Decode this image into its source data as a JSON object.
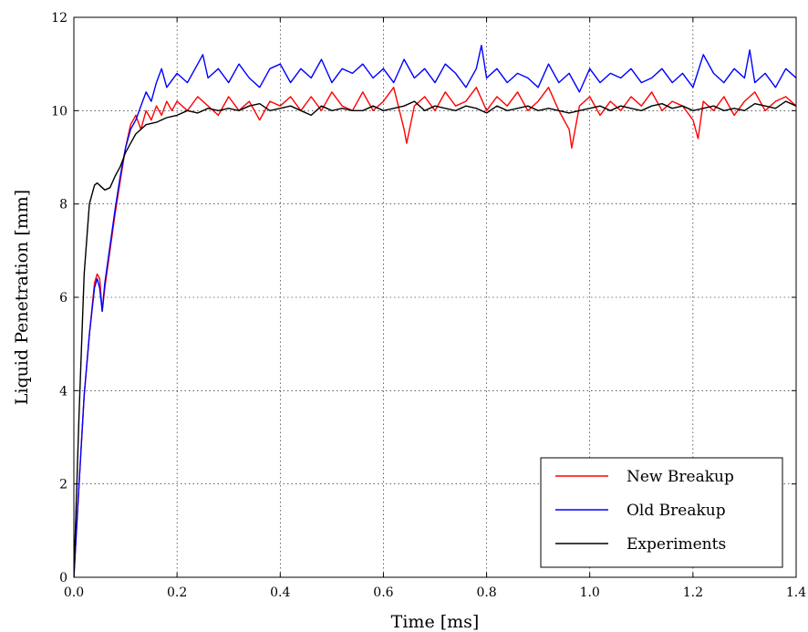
{
  "chart_data": {
    "type": "line",
    "title": "",
    "xlabel": "Time [ms]",
    "ylabel": "Liquid Penetration [mm]",
    "xlim": [
      0.0,
      1.4
    ],
    "ylim": [
      0,
      12
    ],
    "xticks": [
      "0.0",
      "0.2",
      "0.4",
      "0.6",
      "0.8",
      "1.0",
      "1.2",
      "1.4"
    ],
    "yticks": [
      "0",
      "2",
      "4",
      "6",
      "8",
      "10",
      "12"
    ],
    "grid": true,
    "legend_position": "lower right",
    "series": [
      {
        "name": "New Breakup",
        "color": "#ff0000",
        "x": [
          0.0,
          0.01,
          0.02,
          0.03,
          0.04,
          0.045,
          0.05,
          0.055,
          0.06,
          0.07,
          0.08,
          0.09,
          0.1,
          0.11,
          0.12,
          0.13,
          0.14,
          0.15,
          0.16,
          0.17,
          0.18,
          0.19,
          0.2,
          0.22,
          0.24,
          0.26,
          0.28,
          0.3,
          0.32,
          0.34,
          0.36,
          0.38,
          0.4,
          0.42,
          0.44,
          0.46,
          0.48,
          0.5,
          0.52,
          0.54,
          0.56,
          0.58,
          0.6,
          0.62,
          0.64,
          0.645,
          0.66,
          0.68,
          0.7,
          0.72,
          0.74,
          0.76,
          0.78,
          0.8,
          0.82,
          0.84,
          0.86,
          0.88,
          0.9,
          0.92,
          0.94,
          0.96,
          0.965,
          0.98,
          1.0,
          1.02,
          1.04,
          1.06,
          1.08,
          1.1,
          1.12,
          1.14,
          1.16,
          1.18,
          1.2,
          1.21,
          1.22,
          1.24,
          1.26,
          1.28,
          1.3,
          1.32,
          1.34,
          1.36,
          1.38,
          1.4
        ],
        "y": [
          0.0,
          2.0,
          3.9,
          5.2,
          6.3,
          6.5,
          6.4,
          5.7,
          6.2,
          7.0,
          7.8,
          8.5,
          9.2,
          9.7,
          9.9,
          9.6,
          10.0,
          9.8,
          10.1,
          9.9,
          10.2,
          10.0,
          10.2,
          10.0,
          10.3,
          10.1,
          9.9,
          10.3,
          10.0,
          10.2,
          9.8,
          10.2,
          10.1,
          10.3,
          10.0,
          10.3,
          10.0,
          10.4,
          10.1,
          10.0,
          10.4,
          10.0,
          10.2,
          10.5,
          9.6,
          9.3,
          10.1,
          10.3,
          10.0,
          10.4,
          10.1,
          10.2,
          10.5,
          10.0,
          10.3,
          10.1,
          10.4,
          10.0,
          10.2,
          10.5,
          10.0,
          9.6,
          9.2,
          10.1,
          10.3,
          9.9,
          10.2,
          10.0,
          10.3,
          10.1,
          10.4,
          10.0,
          10.2,
          10.1,
          9.8,
          9.4,
          10.2,
          10.0,
          10.3,
          9.9,
          10.2,
          10.4,
          10.0,
          10.2,
          10.3,
          10.1
        ]
      },
      {
        "name": "Old Breakup",
        "color": "#0000ff",
        "x": [
          0.0,
          0.01,
          0.02,
          0.03,
          0.04,
          0.045,
          0.05,
          0.055,
          0.06,
          0.07,
          0.08,
          0.09,
          0.1,
          0.11,
          0.12,
          0.13,
          0.14,
          0.15,
          0.16,
          0.17,
          0.18,
          0.2,
          0.22,
          0.24,
          0.25,
          0.26,
          0.28,
          0.3,
          0.32,
          0.34,
          0.36,
          0.38,
          0.4,
          0.42,
          0.44,
          0.46,
          0.48,
          0.5,
          0.52,
          0.54,
          0.56,
          0.58,
          0.6,
          0.62,
          0.64,
          0.66,
          0.68,
          0.7,
          0.72,
          0.74,
          0.76,
          0.78,
          0.79,
          0.8,
          0.82,
          0.84,
          0.86,
          0.88,
          0.9,
          0.92,
          0.94,
          0.96,
          0.98,
          1.0,
          1.02,
          1.04,
          1.06,
          1.08,
          1.1,
          1.12,
          1.14,
          1.16,
          1.18,
          1.2,
          1.22,
          1.24,
          1.26,
          1.28,
          1.3,
          1.31,
          1.32,
          1.34,
          1.36,
          1.38,
          1.4
        ],
        "y": [
          0.0,
          2.0,
          3.9,
          5.2,
          6.2,
          6.4,
          6.2,
          5.7,
          6.3,
          7.1,
          7.9,
          8.6,
          9.2,
          9.6,
          9.8,
          10.1,
          10.4,
          10.2,
          10.6,
          10.9,
          10.5,
          10.8,
          10.6,
          11.0,
          11.2,
          10.7,
          10.9,
          10.6,
          11.0,
          10.7,
          10.5,
          10.9,
          11.0,
          10.6,
          10.9,
          10.7,
          11.1,
          10.6,
          10.9,
          10.8,
          11.0,
          10.7,
          10.9,
          10.6,
          11.1,
          10.7,
          10.9,
          10.6,
          11.0,
          10.8,
          10.5,
          10.9,
          11.4,
          10.7,
          10.9,
          10.6,
          10.8,
          10.7,
          10.5,
          11.0,
          10.6,
          10.8,
          10.4,
          10.9,
          10.6,
          10.8,
          10.7,
          10.9,
          10.6,
          10.7,
          10.9,
          10.6,
          10.8,
          10.5,
          11.2,
          10.8,
          10.6,
          10.9,
          10.7,
          11.3,
          10.6,
          10.8,
          10.5,
          10.9,
          10.7
        ]
      },
      {
        "name": "Experiments",
        "color": "#000000",
        "x": [
          0.0,
          0.01,
          0.02,
          0.03,
          0.04,
          0.045,
          0.05,
          0.06,
          0.07,
          0.08,
          0.09,
          0.1,
          0.11,
          0.12,
          0.14,
          0.16,
          0.18,
          0.2,
          0.22,
          0.24,
          0.26,
          0.28,
          0.3,
          0.32,
          0.34,
          0.36,
          0.38,
          0.4,
          0.42,
          0.44,
          0.46,
          0.48,
          0.5,
          0.52,
          0.54,
          0.56,
          0.58,
          0.6,
          0.62,
          0.64,
          0.66,
          0.68,
          0.7,
          0.72,
          0.74,
          0.76,
          0.78,
          0.8,
          0.82,
          0.84,
          0.86,
          0.88,
          0.9,
          0.92,
          0.94,
          0.96,
          0.98,
          1.0,
          1.02,
          1.04,
          1.06,
          1.08,
          1.1,
          1.12,
          1.14,
          1.16,
          1.18,
          1.2,
          1.22,
          1.24,
          1.26,
          1.28,
          1.3,
          1.32,
          1.34,
          1.36,
          1.38,
          1.4
        ],
        "y": [
          0.0,
          3.5,
          6.5,
          8.0,
          8.4,
          8.45,
          8.4,
          8.3,
          8.35,
          8.6,
          8.8,
          9.1,
          9.3,
          9.5,
          9.7,
          9.75,
          9.85,
          9.9,
          10.0,
          9.95,
          10.05,
          10.0,
          10.05,
          10.0,
          10.1,
          10.15,
          10.0,
          10.05,
          10.1,
          10.0,
          9.9,
          10.1,
          10.0,
          10.05,
          10.0,
          10.0,
          10.1,
          10.0,
          10.05,
          10.1,
          10.2,
          10.0,
          10.1,
          10.05,
          10.0,
          10.1,
          10.05,
          9.95,
          10.1,
          10.0,
          10.05,
          10.1,
          10.0,
          10.05,
          10.0,
          9.95,
          10.0,
          10.05,
          10.1,
          10.0,
          10.1,
          10.05,
          10.0,
          10.1,
          10.15,
          10.05,
          10.1,
          10.0,
          10.05,
          10.1,
          10.0,
          10.05,
          10.0,
          10.15,
          10.1,
          10.05,
          10.2,
          10.1
        ]
      }
    ]
  }
}
